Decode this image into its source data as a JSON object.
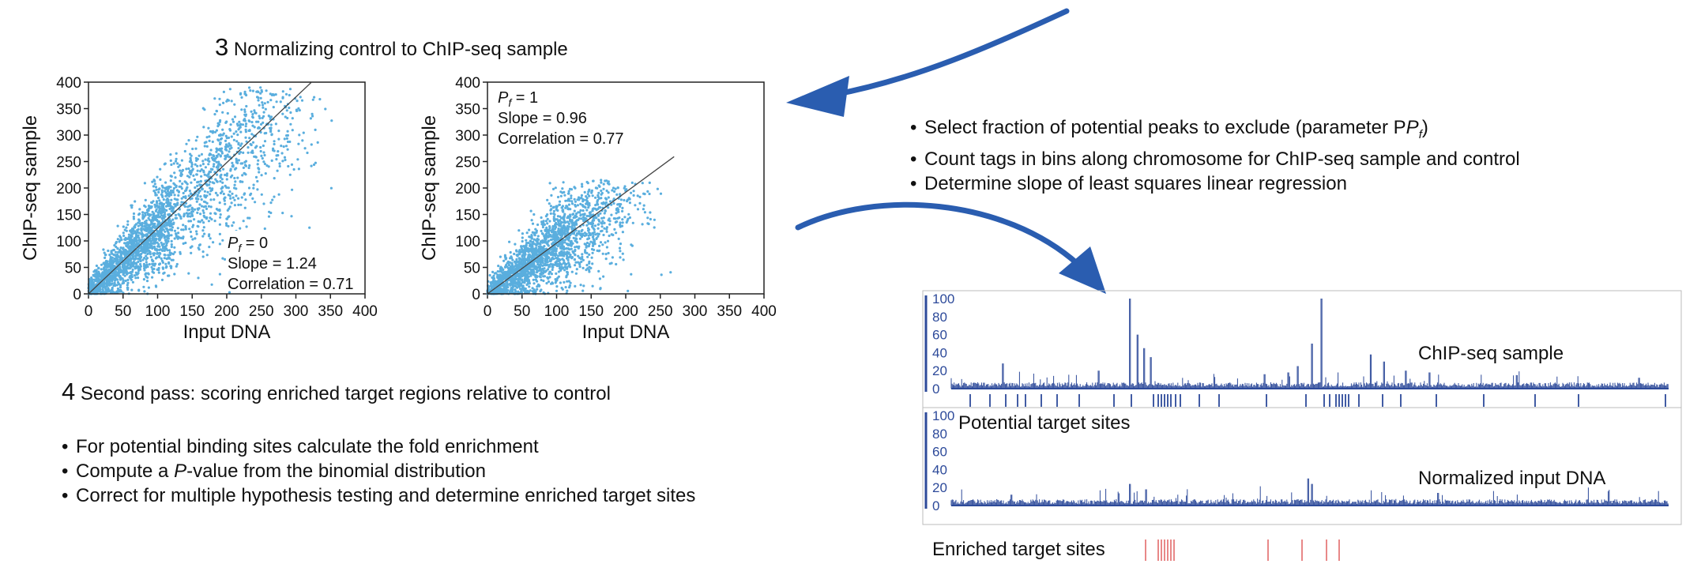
{
  "step3": {
    "number": "3",
    "title": "Normalizing control to ChIP-seq sample"
  },
  "step4": {
    "number": "4",
    "title": "Second pass: scoring enriched target regions relative to control",
    "bullets": [
      "For potential binding sites calculate the fold enrichment",
      "Compute a P-value from the binomial distribution",
      "Correct for multiple hypothesis testing and determine enriched target sites"
    ]
  },
  "procedure_bullets": [
    "Select fraction of potential peaks to exclude (parameter P",
    "Count tags in bins along chromosome for ChIP-seq sample and control",
    "Determine slope of least squares linear regression"
  ],
  "colors": {
    "scatter_point": "#5aaede",
    "regression_line": "#444444",
    "track_blue": "#2d4a9a",
    "arrow_blue": "#2a5db0",
    "enriched_red": "#e06060"
  },
  "chart_data": [
    {
      "type": "scatter",
      "xlabel": "Input DNA",
      "ylabel": "ChIP-seq sample",
      "xlim": [
        0,
        400
      ],
      "ylim": [
        0,
        400
      ],
      "xticks": [
        0,
        50,
        100,
        150,
        200,
        250,
        300,
        350,
        400
      ],
      "yticks": [
        0,
        50,
        100,
        150,
        200,
        250,
        300,
        350,
        400
      ],
      "annotation": {
        "pf_label": "P",
        "pf_sub": "f",
        "pf_value": "= 0",
        "slope": "Slope = 1.24",
        "correlation": "Correlation = 0.71"
      },
      "slope": 1.24,
      "line_x": [
        0,
        322
      ],
      "point_cloud": {
        "x_max": 360,
        "y_cap": 390,
        "n": 2600
      }
    },
    {
      "type": "scatter",
      "xlabel": "Input DNA",
      "ylabel": "ChIP-seq sample",
      "xlim": [
        0,
        400
      ],
      "ylim": [
        0,
        400
      ],
      "xticks": [
        0,
        50,
        100,
        150,
        200,
        250,
        300,
        350,
        400
      ],
      "yticks": [
        0,
        50,
        100,
        150,
        200,
        250,
        300,
        350,
        400
      ],
      "annotation": {
        "pf_label": "P",
        "pf_sub": "f",
        "pf_value": "= 1",
        "slope": "Slope = 0.96",
        "correlation": "Correlation = 0.77"
      },
      "slope": 0.96,
      "line_x": [
        0,
        270
      ],
      "point_cloud": {
        "x_max": 270,
        "y_cap": 215,
        "n": 2200
      }
    },
    {
      "type": "bar",
      "label": "ChIP-seq sample",
      "yticks": [
        0,
        20,
        40,
        60,
        80,
        100
      ],
      "ylim": [
        0,
        100
      ]
    },
    {
      "type": "bar",
      "label": "Normalized input DNA",
      "yticks": [
        0,
        20,
        40,
        60,
        80,
        100
      ],
      "ylim": [
        0,
        100
      ]
    }
  ],
  "track_labels": {
    "potential": "Potential target sites",
    "enriched": "Enriched target sites"
  }
}
